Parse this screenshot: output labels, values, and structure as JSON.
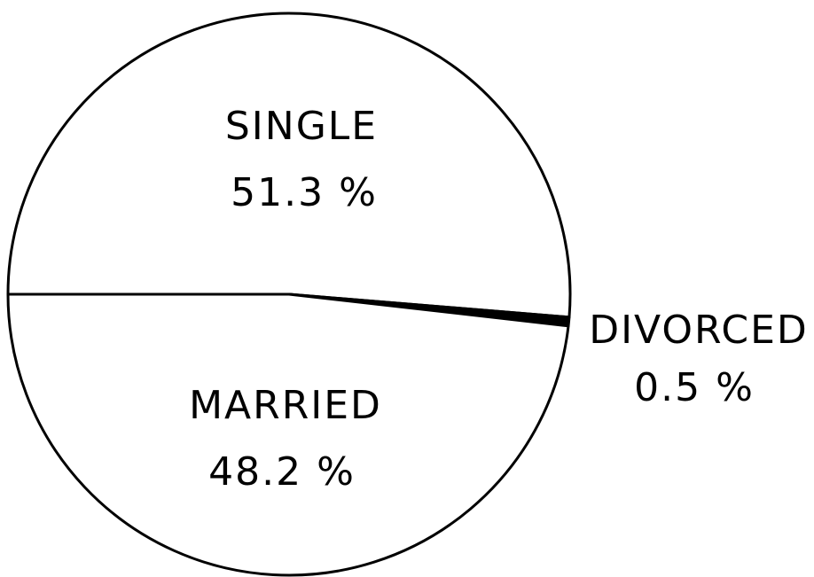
{
  "chart_data": {
    "type": "pie",
    "categories": [
      "SINGLE",
      "DIVORCED",
      "MARRIED"
    ],
    "values": [
      51.3,
      0.5,
      48.2
    ],
    "value_labels": [
      "51.3 %",
      "0.5 %",
      "48.2 %"
    ],
    "colors": [
      "#ffffff",
      "#000000",
      "#ffffff"
    ]
  }
}
